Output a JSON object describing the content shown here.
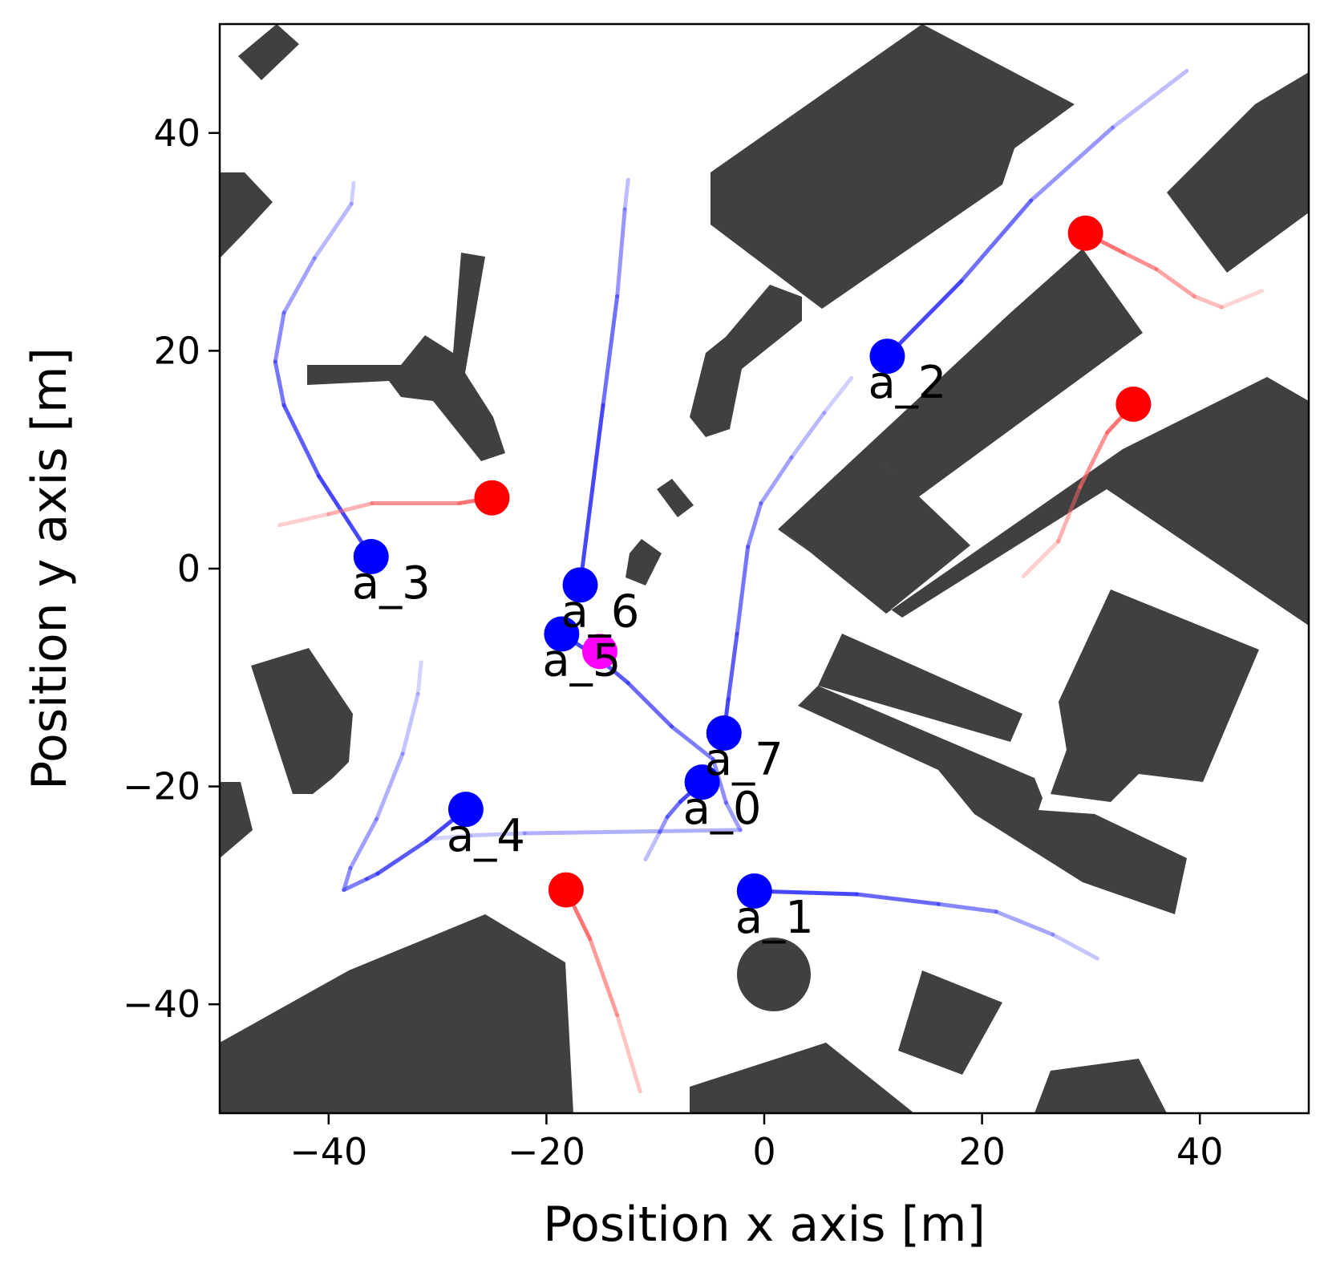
{
  "chart_data": {
    "type": "scatter",
    "title": "",
    "xlabel": "Position x axis [m]",
    "ylabel": "Position y axis [m]",
    "xlim": [
      -50,
      50
    ],
    "ylim": [
      -50,
      50
    ],
    "xticks": [
      -40,
      -20,
      0,
      20,
      40
    ],
    "yticks": [
      -40,
      -20,
      0,
      20,
      40
    ],
    "xtick_labels": [
      "−40",
      "−20",
      "0",
      "20",
      "40"
    ],
    "ytick_labels": [
      "−40",
      "−20",
      "0",
      "20",
      "40"
    ],
    "grid": false,
    "colors": {
      "agent": "#0000ff",
      "agent_path": "#3333ff",
      "obstacle": "#ff0000",
      "obstacle_path": "#ff6666",
      "target": "#ff00ff",
      "building": "#404040"
    },
    "agents": [
      {
        "label": "a_0",
        "x": -5.7,
        "y": -19.6,
        "path": [
          [
            -10.9,
            -26.7
          ],
          [
            -9.6,
            -24.2
          ],
          [
            -8.9,
            -22.8
          ],
          [
            -7.7,
            -21.4
          ],
          [
            -5.7,
            -19.6
          ]
        ]
      },
      {
        "label": "a_1",
        "x": -0.9,
        "y": -29.6,
        "path": [
          [
            30.6,
            -35.8
          ],
          [
            26.5,
            -33.6
          ],
          [
            21.3,
            -31.5
          ],
          [
            16.0,
            -30.8
          ],
          [
            8.5,
            -29.9
          ],
          [
            -0.9,
            -29.6
          ]
        ]
      },
      {
        "label": "a_2",
        "x": 11.3,
        "y": 19.5,
        "path": [
          [
            38.8,
            45.7
          ],
          [
            32.0,
            40.5
          ],
          [
            24.5,
            33.8
          ],
          [
            18.1,
            26.4
          ],
          [
            11.3,
            19.5
          ]
        ]
      },
      {
        "label": "a_3",
        "x": -36.1,
        "y": 1.1,
        "path": [
          [
            -37.7,
            35.4
          ],
          [
            -37.9,
            33.5
          ],
          [
            -41.3,
            28.5
          ],
          [
            -44.1,
            23.5
          ],
          [
            -44.9,
            19.0
          ],
          [
            -44.1,
            15.0
          ],
          [
            -40.9,
            8.5
          ],
          [
            -36.1,
            1.1
          ]
        ]
      },
      {
        "label": "a_4",
        "x": -27.4,
        "y": -22.1,
        "path": [
          [
            -31.5,
            -8.6
          ],
          [
            -31.8,
            -11.5
          ],
          [
            -33.2,
            -17.0
          ],
          [
            -35.6,
            -23.0
          ],
          [
            -38.0,
            -27.5
          ],
          [
            -38.6,
            -29.5
          ],
          [
            -36.5,
            -28.5
          ],
          [
            -35.5,
            -28.0
          ],
          [
            -31.0,
            -25.0
          ],
          [
            -27.4,
            -22.1
          ]
        ]
      },
      {
        "label": "a_5",
        "x": -18.6,
        "y": -6.0,
        "path": [
          [
            -18.6,
            -6.0
          ],
          [
            -15.5,
            -8.0
          ],
          [
            -12.5,
            -10.5
          ],
          [
            -8.5,
            -14.5
          ],
          [
            -4.7,
            -17.5
          ],
          [
            -3.5,
            -21.5
          ],
          [
            -2.2,
            -24.0
          ],
          [
            -22.0,
            -24.3
          ],
          [
            -27.0,
            -24.5
          ],
          [
            -30.5,
            -24.8
          ]
        ]
      },
      {
        "label": "a_6",
        "x": -16.9,
        "y": -1.5,
        "path": [
          [
            -12.5,
            35.7
          ],
          [
            -12.8,
            33.0
          ],
          [
            -13.5,
            25.0
          ],
          [
            -14.8,
            15.0
          ],
          [
            -16.9,
            -1.5
          ]
        ]
      },
      {
        "label": "a_7",
        "x": -3.7,
        "y": -15.1,
        "path": [
          [
            8.0,
            17.5
          ],
          [
            5.5,
            14.3
          ],
          [
            2.5,
            10.2
          ],
          [
            -0.3,
            6.0
          ],
          [
            -1.5,
            2.0
          ],
          [
            -2.5,
            -6.0
          ],
          [
            -3.3,
            -12.0
          ],
          [
            -3.7,
            -15.1
          ]
        ]
      }
    ],
    "obstacles": [
      {
        "x": -25.0,
        "y": 6.5,
        "path": [
          [
            -25.0,
            6.5
          ],
          [
            -28.0,
            6.0
          ],
          [
            -36.0,
            6.0
          ],
          [
            -40.0,
            5.0
          ],
          [
            -44.5,
            4.0
          ]
        ]
      },
      {
        "x": -18.2,
        "y": -29.5,
        "path": [
          [
            -18.2,
            -29.5
          ],
          [
            -16.0,
            -34.0
          ],
          [
            -13.5,
            -41.0
          ],
          [
            -11.4,
            -48.0
          ]
        ]
      },
      {
        "x": 29.5,
        "y": 30.8,
        "path": [
          [
            29.5,
            30.8
          ],
          [
            33.0,
            29.0
          ],
          [
            36.0,
            27.5
          ],
          [
            39.5,
            25.0
          ],
          [
            42.0,
            24.0
          ],
          [
            45.7,
            25.5
          ]
        ]
      },
      {
        "x": 33.9,
        "y": 15.1,
        "path": [
          [
            33.9,
            15.1
          ],
          [
            31.5,
            12.5
          ],
          [
            29.0,
            7.5
          ],
          [
            27.0,
            2.5
          ],
          [
            23.8,
            -0.7
          ]
        ]
      }
    ],
    "target": {
      "x": -15.1,
      "y": -7.6
    }
  }
}
